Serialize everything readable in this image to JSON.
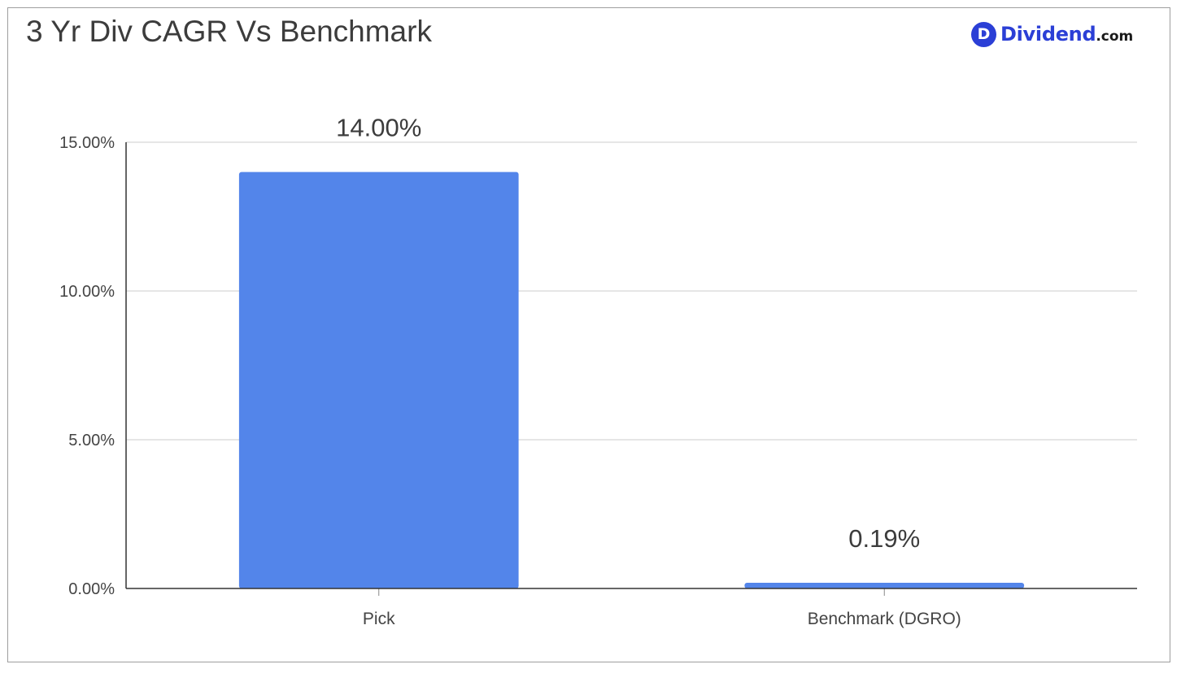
{
  "title": "3 Yr Div CAGR Vs Benchmark",
  "brand": {
    "badge": "D",
    "name": "Dividend",
    "tld": ".com",
    "color": "#2b3fd6"
  },
  "chart_data": {
    "type": "bar",
    "title": "3 Yr Div CAGR Vs Benchmark",
    "categories": [
      "Pick",
      "Benchmark (DGRO)"
    ],
    "values": [
      14.0,
      0.19
    ],
    "data_labels": [
      "14.00%",
      "0.19%"
    ],
    "xlabel": "",
    "ylabel": "",
    "ylim": [
      0,
      15
    ],
    "yticks": [
      0,
      5,
      10,
      15
    ],
    "ytick_labels": [
      "0.00%",
      "5.00%",
      "10.00%",
      "15.00%"
    ],
    "grid": true,
    "legend": "none",
    "bar_color": "#5385ea",
    "grid_color": "#cccccc",
    "axis_color": "#333333"
  }
}
